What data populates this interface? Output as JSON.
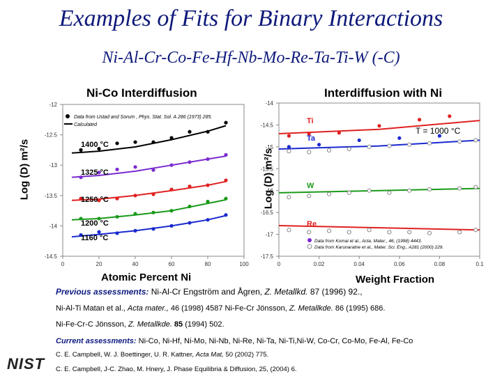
{
  "title": "Examples of Fits for Binary Interactions",
  "subtitle": "Ni-Al-Cr-Co-Fe-Hf-Nb-Mo-Re-Ta-Ti-W (-C)",
  "left_panel": {
    "title": "Ni-Co Interdiffusion",
    "ylabel": "Log (D) m²/s",
    "xlabel": "Atomic Percent Ni",
    "legend_data": "Data from  Ustad and Sorum , Phys. Stat. Sol. A 286 (1973) 285.",
    "legend_calc": "Calculated"
  },
  "right_panel": {
    "title": "Interdiffusion with Ni",
    "ylabel": "Log (D) m²/s",
    "xlabel": "Weight Fraction",
    "temp_label": "T = 1000 °C",
    "src1": "Data from Komai et al., Acta. Mater., 46, (1998) 4443.",
    "src2": "Data from Karunaratne et al., Mater. Sci. Eng., A281 (2000) 229."
  },
  "text": {
    "l1_label": "Previous assessments:",
    "l1_rest": " Ni-Al-Cr Engström and Ågren, ",
    "l1_jour": "Z. Metallkd.",
    "l1_end": " 87 (1996) 92.,",
    "l2_a": "Ni-Al-Ti  Matan et al., ",
    "l2_b": "Acta mater.,",
    "l2_c": " 46 (1998) 4587 ",
    "l2_d": "Ni-Fe-Cr",
    "l2_e": " Jönsson, ",
    "l2_f": "Z. Metallkde.",
    "l2_g": " 86 (1995) 686.",
    "l3_a": "Ni-Fe-Cr-C",
    "l3_b": " Jönsson, ",
    "l3_c": "Z. Metallkde.",
    "l3_d": " 85 ",
    "l3_e": " (1994) 502.",
    "l4_label": "Current assessments:",
    "l4_rest": " Ni-Co, Ni-Hf, Ni-Mo, Ni-Nb, Ni-Re, Ni-Ta, Ni-Ti,Ni-W, Co-Cr, Co-Mo, Fe-Al, Fe-Co",
    "l5_a": "C. E. Campbell, W. J. Boettinger, U. R. Kattner, ",
    "l5_b": "Acta Mat,",
    "l5_c": " 50 (2002) 775.",
    "l6_a": "C. E. Campbell, J-C. Zhao, M. Hnery, J. Phase Equilibria & Diffusion, 25, (2004) 6."
  },
  "logo": "NIST",
  "chart_data": [
    {
      "type": "scatter",
      "title": "Ni-Co Interdiffusion",
      "xlabel": "Atomic Percent Ni",
      "ylabel": "Log (D) m²/s",
      "xlim": [
        0,
        100
      ],
      "ylim": [
        -14.5,
        -12
      ],
      "xticks": [
        "0",
        "20",
        "40",
        "60",
        "80",
        "100"
      ],
      "yticks": [
        "-12",
        "-12.5",
        "-13",
        "-13.5",
        "-14",
        "-14.5"
      ],
      "series": [
        {
          "name": "1400 °C",
          "color": "#000000",
          "x": [
            10,
            20,
            30,
            40,
            50,
            60,
            70,
            80,
            90
          ],
          "y": [
            -12.75,
            -12.73,
            -12.64,
            -12.62,
            -12.62,
            -12.55,
            -12.45,
            -12.45,
            -12.3
          ],
          "fit": [
            [
              5,
              -12.8
            ],
            [
              20,
              -12.77
            ],
            [
              40,
              -12.7
            ],
            [
              60,
              -12.58
            ],
            [
              80,
              -12.44
            ],
            [
              90,
              -12.35
            ]
          ]
        },
        {
          "name": "1325 °C",
          "color": "#7a2bd0",
          "x": [
            10,
            20,
            30,
            40,
            50,
            60,
            70,
            80,
            90
          ],
          "y": [
            -13.2,
            -13.12,
            -13.07,
            -13.03,
            -13.08,
            -13.0,
            -12.95,
            -12.9,
            -12.83
          ],
          "fit": [
            [
              5,
              -13.2
            ],
            [
              20,
              -13.17
            ],
            [
              40,
              -13.1
            ],
            [
              60,
              -13.0
            ],
            [
              80,
              -12.9
            ],
            [
              90,
              -12.85
            ]
          ]
        },
        {
          "name": "1250 °C",
          "color": "#e02020",
          "x": [
            10,
            20,
            30,
            40,
            50,
            60,
            70,
            80,
            90
          ],
          "y": [
            -13.55,
            -13.58,
            -13.55,
            -13.5,
            -13.48,
            -13.4,
            -13.35,
            -13.33,
            -13.25
          ],
          "fit": [
            [
              5,
              -13.58
            ],
            [
              20,
              -13.56
            ],
            [
              40,
              -13.5
            ],
            [
              60,
              -13.42
            ],
            [
              80,
              -13.33
            ],
            [
              90,
              -13.27
            ]
          ]
        },
        {
          "name": "1200 °C",
          "color": "#1a9a1a",
          "x": [
            10,
            20,
            30,
            40,
            50,
            60,
            70,
            80,
            90
          ],
          "y": [
            -13.88,
            -13.88,
            -13.85,
            -13.8,
            -13.78,
            -13.75,
            -13.68,
            -13.6,
            -13.55
          ],
          "fit": [
            [
              5,
              -13.9
            ],
            [
              20,
              -13.88
            ],
            [
              40,
              -13.82
            ],
            [
              60,
              -13.75
            ],
            [
              80,
              -13.63
            ],
            [
              90,
              -13.57
            ]
          ]
        },
        {
          "name": "1160 °C",
          "color": "#1a2ad0",
          "x": [
            10,
            20,
            30,
            40,
            50,
            60,
            70,
            80,
            90
          ],
          "y": [
            -14.15,
            -14.1,
            -14.12,
            -14.08,
            -14.05,
            -14.0,
            -13.95,
            -13.9,
            -13.82
          ],
          "fit": [
            [
              5,
              -14.18
            ],
            [
              20,
              -14.14
            ],
            [
              40,
              -14.08
            ],
            [
              60,
              -14.0
            ],
            [
              80,
              -13.9
            ],
            [
              90,
              -13.83
            ]
          ]
        }
      ]
    },
    {
      "type": "scatter",
      "title": "Interdiffusion with Ni",
      "xlabel": "Weight Fraction",
      "ylabel": "Log (D) m²/s",
      "xlim": [
        0,
        0.1
      ],
      "ylim": [
        -17.5,
        -14
      ],
      "xticks": [
        "0",
        "0.02",
        "0.04",
        "0.06",
        "0.08",
        "0.1"
      ],
      "yticks": [
        "-14",
        "-14.5",
        "-15",
        "-15.5",
        "-16",
        "-16.5",
        "-17",
        "-17.5"
      ],
      "series": [
        {
          "name": "Ti",
          "color": "#e02020",
          "xf": [
            0.005,
            0.015,
            0.03,
            0.05,
            0.07,
            0.085
          ],
          "yf": [
            -14.75,
            -14.7,
            -14.68,
            -14.52,
            -14.38,
            -14.3
          ],
          "fit": [
            [
              0,
              -14.7
            ],
            [
              0.05,
              -14.6
            ],
            [
              0.1,
              -14.4
            ]
          ]
        },
        {
          "name": "Ta",
          "color": "#1a2ad0",
          "xf": [
            0.005,
            0.02,
            0.04,
            0.06,
            0.08
          ],
          "yf": [
            -15.0,
            -14.95,
            -14.85,
            -14.8,
            -14.75
          ],
          "xo": [
            0.005,
            0.015,
            0.025,
            0.035,
            0.045,
            0.055,
            0.065,
            0.075,
            0.09,
            0.098
          ],
          "yo": [
            -15.1,
            -15.12,
            -15.08,
            -15.05,
            -15.0,
            -14.98,
            -14.95,
            -14.92,
            -14.88,
            -14.85
          ],
          "fit": [
            [
              0,
              -15.05
            ],
            [
              0.05,
              -14.98
            ],
            [
              0.1,
              -14.85
            ]
          ]
        },
        {
          "name": "W",
          "color": "#1a9a1a",
          "xo": [
            0.005,
            0.015,
            0.025,
            0.035,
            0.045,
            0.055,
            0.065,
            0.075,
            0.09,
            0.098
          ],
          "yo": [
            -16.15,
            -16.12,
            -16.08,
            -16.05,
            -16.0,
            -16.05,
            -16.0,
            -15.97,
            -15.95,
            -15.92
          ],
          "fit": [
            [
              0,
              -16.05
            ],
            [
              0.05,
              -16.0
            ],
            [
              0.1,
              -15.95
            ]
          ]
        },
        {
          "name": "Re",
          "color": "#e02020",
          "xo": [
            0.005,
            0.015,
            0.025,
            0.035,
            0.045,
            0.055,
            0.065,
            0.075,
            0.09,
            0.098
          ],
          "yo": [
            -16.9,
            -16.95,
            -16.92,
            -16.95,
            -16.9,
            -16.95,
            -16.95,
            -16.97,
            -16.95,
            -16.9
          ],
          "fit": [
            [
              0,
              -16.8
            ],
            [
              0.05,
              -16.85
            ],
            [
              0.1,
              -16.9
            ]
          ]
        }
      ]
    }
  ]
}
